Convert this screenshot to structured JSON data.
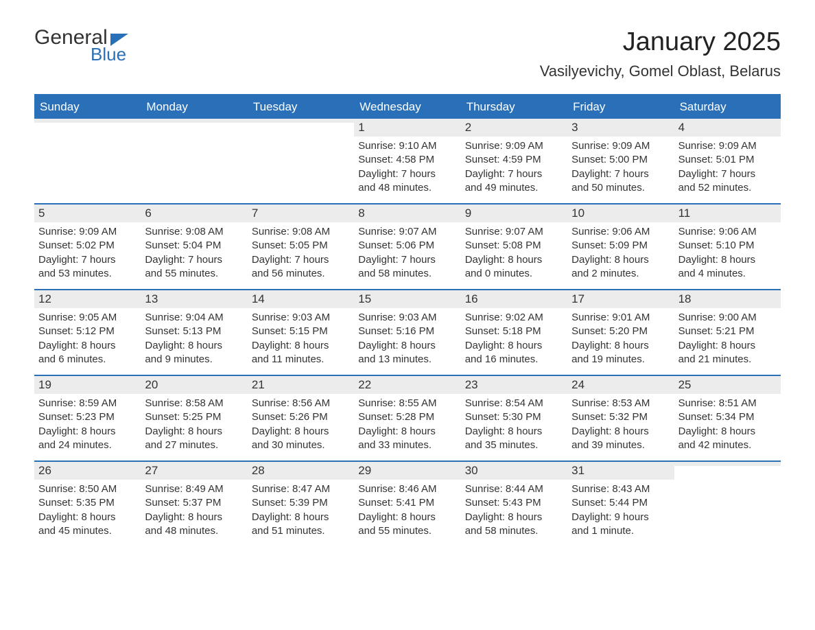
{
  "logo": {
    "text1": "General",
    "text2": "Blue"
  },
  "title": "January 2025",
  "location": "Vasilyevichy, Gomel Oblast, Belarus",
  "colors": {
    "brand_blue": "#2a70b8",
    "header_gray": "#ececec",
    "text": "#333333",
    "background": "#ffffff"
  },
  "typography": {
    "font_family": "Arial, Helvetica, sans-serif",
    "title_fontsize": 38,
    "location_fontsize": 22,
    "dayhead_fontsize": 17,
    "daynum_fontsize": 17,
    "body_fontsize": 15
  },
  "day_headers": [
    "Sunday",
    "Monday",
    "Tuesday",
    "Wednesday",
    "Thursday",
    "Friday",
    "Saturday"
  ],
  "weeks": [
    [
      {
        "n": "",
        "sunrise": "",
        "sunset": "",
        "daylight": ""
      },
      {
        "n": "",
        "sunrise": "",
        "sunset": "",
        "daylight": ""
      },
      {
        "n": "",
        "sunrise": "",
        "sunset": "",
        "daylight": ""
      },
      {
        "n": "1",
        "sunrise": "Sunrise: 9:10 AM",
        "sunset": "Sunset: 4:58 PM",
        "daylight": "Daylight: 7 hours and 48 minutes."
      },
      {
        "n": "2",
        "sunrise": "Sunrise: 9:09 AM",
        "sunset": "Sunset: 4:59 PM",
        "daylight": "Daylight: 7 hours and 49 minutes."
      },
      {
        "n": "3",
        "sunrise": "Sunrise: 9:09 AM",
        "sunset": "Sunset: 5:00 PM",
        "daylight": "Daylight: 7 hours and 50 minutes."
      },
      {
        "n": "4",
        "sunrise": "Sunrise: 9:09 AM",
        "sunset": "Sunset: 5:01 PM",
        "daylight": "Daylight: 7 hours and 52 minutes."
      }
    ],
    [
      {
        "n": "5",
        "sunrise": "Sunrise: 9:09 AM",
        "sunset": "Sunset: 5:02 PM",
        "daylight": "Daylight: 7 hours and 53 minutes."
      },
      {
        "n": "6",
        "sunrise": "Sunrise: 9:08 AM",
        "sunset": "Sunset: 5:04 PM",
        "daylight": "Daylight: 7 hours and 55 minutes."
      },
      {
        "n": "7",
        "sunrise": "Sunrise: 9:08 AM",
        "sunset": "Sunset: 5:05 PM",
        "daylight": "Daylight: 7 hours and 56 minutes."
      },
      {
        "n": "8",
        "sunrise": "Sunrise: 9:07 AM",
        "sunset": "Sunset: 5:06 PM",
        "daylight": "Daylight: 7 hours and 58 minutes."
      },
      {
        "n": "9",
        "sunrise": "Sunrise: 9:07 AM",
        "sunset": "Sunset: 5:08 PM",
        "daylight": "Daylight: 8 hours and 0 minutes."
      },
      {
        "n": "10",
        "sunrise": "Sunrise: 9:06 AM",
        "sunset": "Sunset: 5:09 PM",
        "daylight": "Daylight: 8 hours and 2 minutes."
      },
      {
        "n": "11",
        "sunrise": "Sunrise: 9:06 AM",
        "sunset": "Sunset: 5:10 PM",
        "daylight": "Daylight: 8 hours and 4 minutes."
      }
    ],
    [
      {
        "n": "12",
        "sunrise": "Sunrise: 9:05 AM",
        "sunset": "Sunset: 5:12 PM",
        "daylight": "Daylight: 8 hours and 6 minutes."
      },
      {
        "n": "13",
        "sunrise": "Sunrise: 9:04 AM",
        "sunset": "Sunset: 5:13 PM",
        "daylight": "Daylight: 8 hours and 9 minutes."
      },
      {
        "n": "14",
        "sunrise": "Sunrise: 9:03 AM",
        "sunset": "Sunset: 5:15 PM",
        "daylight": "Daylight: 8 hours and 11 minutes."
      },
      {
        "n": "15",
        "sunrise": "Sunrise: 9:03 AM",
        "sunset": "Sunset: 5:16 PM",
        "daylight": "Daylight: 8 hours and 13 minutes."
      },
      {
        "n": "16",
        "sunrise": "Sunrise: 9:02 AM",
        "sunset": "Sunset: 5:18 PM",
        "daylight": "Daylight: 8 hours and 16 minutes."
      },
      {
        "n": "17",
        "sunrise": "Sunrise: 9:01 AM",
        "sunset": "Sunset: 5:20 PM",
        "daylight": "Daylight: 8 hours and 19 minutes."
      },
      {
        "n": "18",
        "sunrise": "Sunrise: 9:00 AM",
        "sunset": "Sunset: 5:21 PM",
        "daylight": "Daylight: 8 hours and 21 minutes."
      }
    ],
    [
      {
        "n": "19",
        "sunrise": "Sunrise: 8:59 AM",
        "sunset": "Sunset: 5:23 PM",
        "daylight": "Daylight: 8 hours and 24 minutes."
      },
      {
        "n": "20",
        "sunrise": "Sunrise: 8:58 AM",
        "sunset": "Sunset: 5:25 PM",
        "daylight": "Daylight: 8 hours and 27 minutes."
      },
      {
        "n": "21",
        "sunrise": "Sunrise: 8:56 AM",
        "sunset": "Sunset: 5:26 PM",
        "daylight": "Daylight: 8 hours and 30 minutes."
      },
      {
        "n": "22",
        "sunrise": "Sunrise: 8:55 AM",
        "sunset": "Sunset: 5:28 PM",
        "daylight": "Daylight: 8 hours and 33 minutes."
      },
      {
        "n": "23",
        "sunrise": "Sunrise: 8:54 AM",
        "sunset": "Sunset: 5:30 PM",
        "daylight": "Daylight: 8 hours and 35 minutes."
      },
      {
        "n": "24",
        "sunrise": "Sunrise: 8:53 AM",
        "sunset": "Sunset: 5:32 PM",
        "daylight": "Daylight: 8 hours and 39 minutes."
      },
      {
        "n": "25",
        "sunrise": "Sunrise: 8:51 AM",
        "sunset": "Sunset: 5:34 PM",
        "daylight": "Daylight: 8 hours and 42 minutes."
      }
    ],
    [
      {
        "n": "26",
        "sunrise": "Sunrise: 8:50 AM",
        "sunset": "Sunset: 5:35 PM",
        "daylight": "Daylight: 8 hours and 45 minutes."
      },
      {
        "n": "27",
        "sunrise": "Sunrise: 8:49 AM",
        "sunset": "Sunset: 5:37 PM",
        "daylight": "Daylight: 8 hours and 48 minutes."
      },
      {
        "n": "28",
        "sunrise": "Sunrise: 8:47 AM",
        "sunset": "Sunset: 5:39 PM",
        "daylight": "Daylight: 8 hours and 51 minutes."
      },
      {
        "n": "29",
        "sunrise": "Sunrise: 8:46 AM",
        "sunset": "Sunset: 5:41 PM",
        "daylight": "Daylight: 8 hours and 55 minutes."
      },
      {
        "n": "30",
        "sunrise": "Sunrise: 8:44 AM",
        "sunset": "Sunset: 5:43 PM",
        "daylight": "Daylight: 8 hours and 58 minutes."
      },
      {
        "n": "31",
        "sunrise": "Sunrise: 8:43 AM",
        "sunset": "Sunset: 5:44 PM",
        "daylight": "Daylight: 9 hours and 1 minute."
      },
      {
        "n": "",
        "sunrise": "",
        "sunset": "",
        "daylight": ""
      }
    ]
  ]
}
